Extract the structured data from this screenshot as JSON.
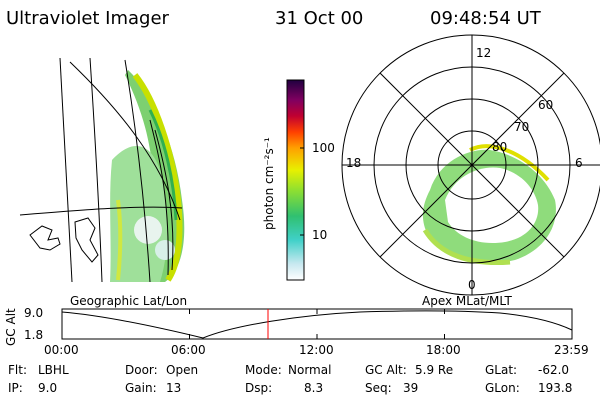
{
  "header": {
    "instrument": "Ultraviolet Imager",
    "date": "31 Oct 00",
    "time": "09:48:54 UT"
  },
  "panels": {
    "left_label": "Geographic Lat/Lon",
    "right_label": "Apex MLat/MLT"
  },
  "colorbar": {
    "unit_label": "photon cm⁻²s⁻¹",
    "ticks": [
      "100",
      "10"
    ],
    "colors": [
      "#ffffff",
      "#c8e8f0",
      "#40d0c8",
      "#30c070",
      "#90e030",
      "#e8f000",
      "#ffa000",
      "#ff4000",
      "#c00030",
      "#800060",
      "#200040"
    ]
  },
  "polar": {
    "mlt_labels": {
      "top": "12",
      "left": "18",
      "right": "6",
      "bottom": "0"
    },
    "lat_labels": [
      "60",
      "70",
      "80"
    ]
  },
  "timeline": {
    "ylabel": "GC Alt",
    "yticks": [
      "9.0",
      "1.8"
    ],
    "xticks": [
      "00:00",
      "06:00",
      "12:00",
      "18:00",
      "23:59"
    ],
    "marker_color": "#ff0000"
  },
  "status": {
    "flt": {
      "label": "Flt:",
      "value": "LBHL"
    },
    "ip": {
      "label": "IP:",
      "value": "9.0"
    },
    "door": {
      "label": "Door:",
      "value": "Open"
    },
    "gain": {
      "label": "Gain:",
      "value": "13"
    },
    "mode": {
      "label": "Mode:",
      "value": "Normal"
    },
    "dsp": {
      "label": "Dsp:",
      "value": "8.3"
    },
    "gcalt": {
      "label": "GC Alt:",
      "value": "5.9 Re"
    },
    "seq": {
      "label": "Seq:",
      "value": "39"
    },
    "glat": {
      "label": "GLat:",
      "value": "-62.0"
    },
    "glon": {
      "label": "GLon:",
      "value": "193.8"
    }
  }
}
